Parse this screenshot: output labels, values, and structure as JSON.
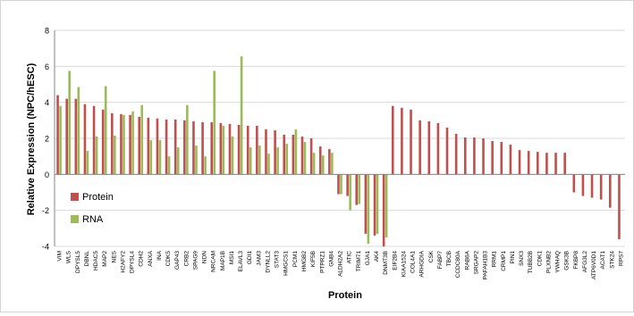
{
  "chart_data": {
    "type": "bar",
    "title": "",
    "xlabel": "Protein",
    "ylabel": "Relative Expression (NPC/hESC)",
    "ylim": [
      -4,
      8
    ],
    "yticks": [
      -4,
      -2,
      0,
      2,
      4,
      6,
      8
    ],
    "grid": "horizontal",
    "legend_position": "left",
    "colors": {
      "Protein": "#c0504d",
      "RNA": "#9bbb59",
      "gridline": "#d9d9d9",
      "axis": "#868686"
    },
    "categories": [
      "VIM",
      "WLS",
      "DPYSL5",
      "DBNL",
      "HDAC5",
      "MAP2",
      "NES",
      "H2AFY2",
      "DPYSL4",
      "CDH2",
      "ANXA",
      "INA",
      "CDK5",
      "GAP43",
      "CRB2",
      "SPAG9",
      "NDN",
      "NRCAM",
      "MAP1B",
      "MSI1",
      "ELAVL3",
      "GDI1",
      "JAM3",
      "DYNLL2",
      "STAT3",
      "HMGCS1",
      "PCM1",
      "HMGB2",
      "KIF5B",
      "PTPRZ1",
      "GNB4",
      "ALDH2A2",
      "ATIC",
      "TRIM71",
      "GJA1",
      "AK4",
      "DNMT3B",
      "EIF2B4",
      "KIAA1524",
      "COL4A1",
      "ARHGDIA",
      "CSK",
      "FABP7",
      "TBCB",
      "CCDC80A",
      "RAB6A",
      "SRGAP2",
      "PAFAH1B3",
      "RRM1",
      "CRMP1",
      "PIN1",
      "SNX3",
      "TUBB2B",
      "CDK1",
      "PLXNB2",
      "YWHAQ",
      "GSK3B",
      "FKBP8",
      "AFG3L2",
      "ATP6V0D1",
      "ACAT1",
      "STK24",
      "RPS7"
    ],
    "series": [
      {
        "name": "Protein",
        "values": [
          4.4,
          4.2,
          4.2,
          3.9,
          3.8,
          3.6,
          3.4,
          3.35,
          3.3,
          3.2,
          3.15,
          3.1,
          3.05,
          3.05,
          3.0,
          2.95,
          2.9,
          2.9,
          2.85,
          2.8,
          2.75,
          2.7,
          2.7,
          2.5,
          2.45,
          2.2,
          2.2,
          2.1,
          2.0,
          1.55,
          1.4,
          -1.1,
          -1.2,
          -1.7,
          -3.3,
          -3.4,
          -4.0,
          3.8,
          3.7,
          3.6,
          3.0,
          2.95,
          2.85,
          2.6,
          2.25,
          2.05,
          2.05,
          2.0,
          1.85,
          1.8,
          1.65,
          1.35,
          1.3,
          1.25,
          1.2,
          1.2,
          1.2,
          -1.0,
          -1.2,
          -1.3,
          -1.4,
          -1.85,
          -3.6
        ]
      },
      {
        "name": "RNA",
        "values": [
          3.8,
          5.75,
          4.85,
          1.3,
          2.1,
          4.9,
          2.15,
          3.3,
          3.5,
          3.85,
          1.9,
          1.9,
          1.0,
          1.5,
          3.85,
          1.6,
          1.0,
          5.75,
          2.7,
          2.1,
          6.55,
          1.5,
          1.6,
          1.15,
          1.5,
          1.7,
          2.5,
          1.8,
          1.2,
          1.05,
          1.2,
          -1.1,
          -2.0,
          -1.65,
          -3.85,
          -3.3,
          -3.5,
          null,
          null,
          null,
          null,
          null,
          null,
          null,
          null,
          null,
          null,
          null,
          null,
          null,
          null,
          null,
          null,
          null,
          null,
          null,
          null,
          null,
          null,
          null,
          null,
          null,
          null
        ]
      }
    ],
    "legend": [
      "Protein",
      "RNA"
    ]
  }
}
